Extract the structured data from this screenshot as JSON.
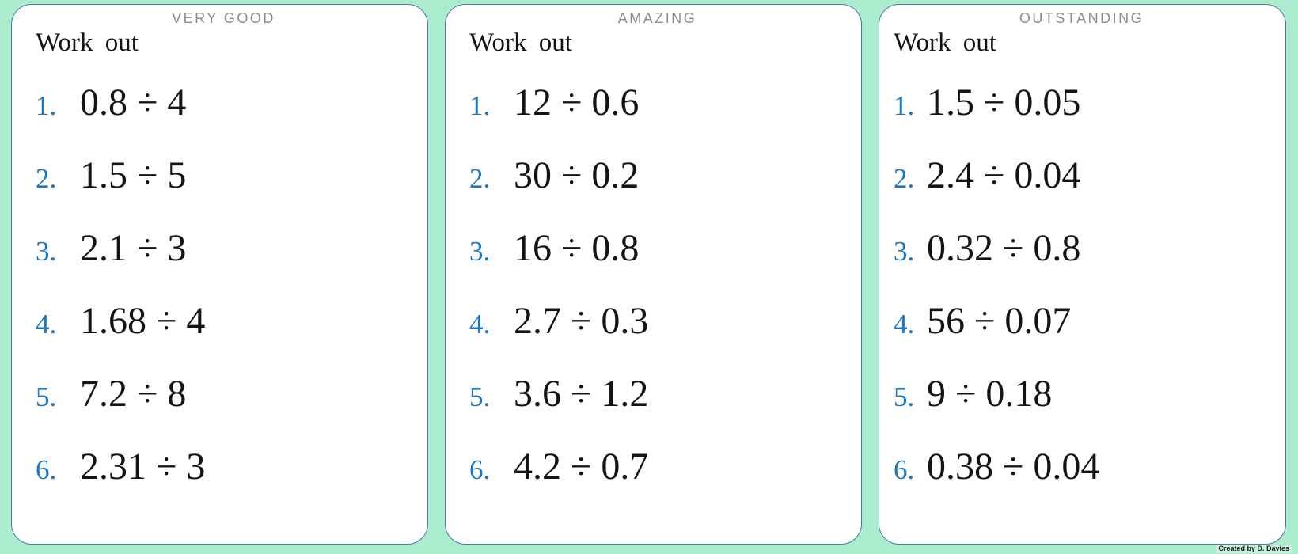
{
  "theme": {
    "background": "#aaeccd",
    "card_background": "#ffffff",
    "card_border_color": "#4a78ad",
    "header_color": "#8c8c8c",
    "number_color": "#1b76c4",
    "text_color": "#141414"
  },
  "cards": [
    {
      "header": "VERY GOOD",
      "prompt": "Work out",
      "problems": [
        {
          "label": "1.",
          "expression": "0.8 ÷ 4"
        },
        {
          "label": "2.",
          "expression": "1.5 ÷ 5"
        },
        {
          "label": "3.",
          "expression": "2.1 ÷ 3"
        },
        {
          "label": "4.",
          "expression": "1.68 ÷ 4"
        },
        {
          "label": "5.",
          "expression": "7.2 ÷ 8"
        },
        {
          "label": "6.",
          "expression": "2.31 ÷ 3"
        }
      ]
    },
    {
      "header": "AMAZING",
      "prompt": "Work out",
      "problems": [
        {
          "label": "1.",
          "expression": "12 ÷ 0.6"
        },
        {
          "label": "2.",
          "expression": "30 ÷ 0.2"
        },
        {
          "label": "3.",
          "expression": "16 ÷ 0.8"
        },
        {
          "label": "4.",
          "expression": "2.7 ÷ 0.3"
        },
        {
          "label": "5.",
          "expression": "3.6 ÷ 1.2"
        },
        {
          "label": "6.",
          "expression": "4.2 ÷ 0.7"
        }
      ]
    },
    {
      "header": "OUTSTANDING",
      "prompt": "Work out",
      "problems": [
        {
          "label": "1.",
          "expression": "1.5 ÷ 0.05"
        },
        {
          "label": "2.",
          "expression": "2.4 ÷ 0.04"
        },
        {
          "label": "3.",
          "expression": "0.32 ÷ 0.8"
        },
        {
          "label": "4.",
          "expression": "56 ÷ 0.07"
        },
        {
          "label": "5.",
          "expression": "9 ÷ 0.18"
        },
        {
          "label": "6.",
          "expression": "0.38 ÷ 0.04"
        }
      ]
    }
  ],
  "footer": {
    "credit": "Created by D. Davies"
  }
}
